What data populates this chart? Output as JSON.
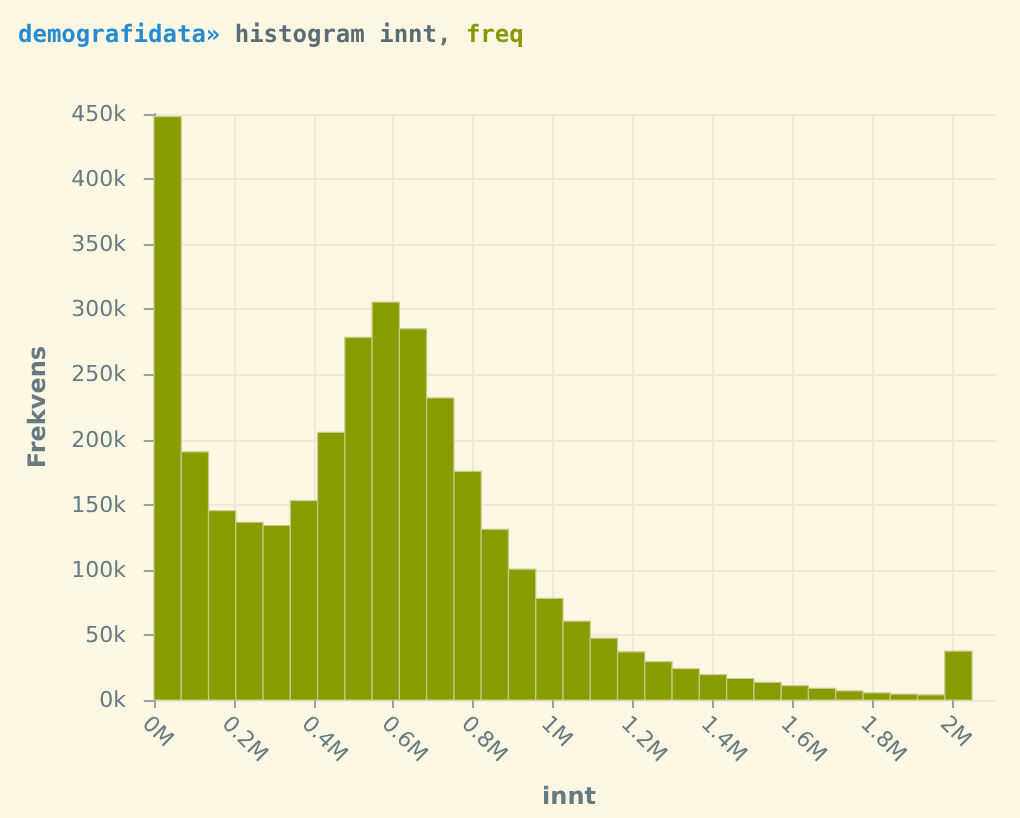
{
  "chart_data": {
    "type": "histogram",
    "title": "demografidata» histogram innt, freq",
    "xlabel": "innt",
    "ylabel": "Frekvens",
    "color": "#889c00",
    "bins": [
      0,
      68333,
      136667,
      205000,
      273333,
      341667,
      410000,
      478333,
      546667,
      615000,
      683333,
      751667,
      820000,
      888333,
      956667,
      1025000,
      1093333,
      1161667,
      1230000,
      1298333,
      1366667,
      1435000,
      1503333,
      1571667,
      1640000,
      1708333,
      1776667,
      1845000,
      1913333,
      1981667,
      2050000
    ],
    "values": [
      448000,
      190500,
      145500,
      136500,
      134000,
      153000,
      205500,
      278500,
      305500,
      285000,
      232000,
      175500,
      131000,
      100500,
      78000,
      60500,
      47500,
      37000,
      29500,
      24000,
      19500,
      16500,
      13500,
      11000,
      9000,
      7000,
      5500,
      4500,
      4000,
      37500
    ],
    "xlim": [
      -30000,
      2110000
    ],
    "xticks": [
      {
        "value": 0,
        "label": "0M"
      },
      {
        "value": 200000,
        "label": "0.2M"
      },
      {
        "value": 400000,
        "label": "0.4M"
      },
      {
        "value": 600000,
        "label": "0.6M"
      },
      {
        "value": 800000,
        "label": "0.8M"
      },
      {
        "value": 1000000,
        "label": "1M"
      },
      {
        "value": 1200000,
        "label": "1.2M"
      },
      {
        "value": 1400000,
        "label": "1.4M"
      },
      {
        "value": 1600000,
        "label": "1.6M"
      },
      {
        "value": 1800000,
        "label": "1.8M"
      },
      {
        "value": 2000000,
        "label": "2M"
      }
    ],
    "ylim": [
      0,
      450000
    ],
    "yticks": [
      {
        "value": 0,
        "label": "0k"
      },
      {
        "value": 50000,
        "label": "50k"
      },
      {
        "value": 100000,
        "label": "100k"
      },
      {
        "value": 150000,
        "label": "150k"
      },
      {
        "value": 200000,
        "label": "200k"
      },
      {
        "value": 250000,
        "label": "250k"
      },
      {
        "value": 300000,
        "label": "300k"
      },
      {
        "value": 350000,
        "label": "350k"
      },
      {
        "value": 400000,
        "label": "400k"
      },
      {
        "value": 450000,
        "label": "450k"
      }
    ],
    "grid": true
  }
}
